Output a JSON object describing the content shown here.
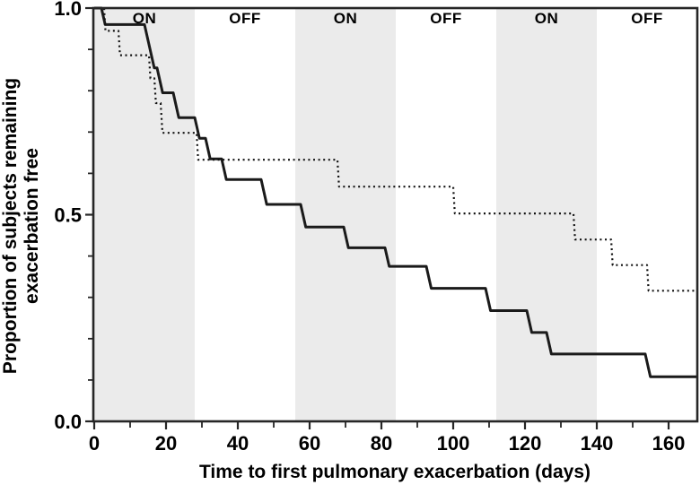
{
  "figure": {
    "background": "#ffffff"
  },
  "chart_data": {
    "type": "line",
    "subtype": "kaplan-meier-step-survival",
    "title": "",
    "xlabel": "Time to first pulmonary exacerbation (days)",
    "ylabel_line1": "Proportion of subjects remaining",
    "ylabel_line2": "exacerbation free",
    "xlim": [
      0,
      168
    ],
    "ylim": [
      0.0,
      1.0
    ],
    "x_major_ticks": [
      0,
      20,
      40,
      60,
      80,
      100,
      120,
      140,
      160
    ],
    "x_minor_ticks": [
      10,
      30,
      50,
      70,
      90,
      110,
      130,
      150
    ],
    "y_major_ticks": [
      0.0,
      0.5,
      1.0
    ],
    "y_major_tick_labels": [
      "0.0",
      "0.5",
      "1.0"
    ],
    "y_minor_ticks": [
      0.1,
      0.2,
      0.3,
      0.4,
      0.6,
      0.7,
      0.8,
      0.9
    ],
    "grid": false,
    "legend": "none",
    "treatment_periods": [
      {
        "label": "ON",
        "start": 0,
        "end": 28,
        "shaded": true
      },
      {
        "label": "OFF",
        "start": 28,
        "end": 56,
        "shaded": false
      },
      {
        "label": "ON",
        "start": 56,
        "end": 84,
        "shaded": true
      },
      {
        "label": "OFF",
        "start": 84,
        "end": 112,
        "shaded": false
      },
      {
        "label": "ON",
        "start": 112,
        "end": 140,
        "shaded": true
      },
      {
        "label": "OFF",
        "start": 140,
        "end": 168,
        "shaded": false
      }
    ],
    "series": [
      {
        "name": "solid curve",
        "line_style": "solid",
        "color": "#1a1a1a",
        "steps": [
          [
            0,
            1.0
          ],
          [
            2,
            0.96
          ],
          [
            14,
            0.855
          ],
          [
            17.5,
            0.795
          ],
          [
            22,
            0.735
          ],
          [
            28,
            0.685
          ],
          [
            31,
            0.635
          ],
          [
            35.5,
            0.585
          ],
          [
            46.5,
            0.525
          ],
          [
            57.5,
            0.47
          ],
          [
            69.5,
            0.42
          ],
          [
            81,
            0.375
          ],
          [
            92.5,
            0.322
          ],
          [
            109,
            0.268
          ],
          [
            120.5,
            0.215
          ],
          [
            126,
            0.163
          ],
          [
            153.5,
            0.108
          ]
        ],
        "end_x": 168
      },
      {
        "name": "dotted curve",
        "line_style": "dotted",
        "color": "#111111",
        "steps": [
          [
            0,
            1.0
          ],
          [
            2.75,
            0.945
          ],
          [
            6.75,
            0.886
          ],
          [
            15.25,
            0.83
          ],
          [
            16.75,
            0.77
          ],
          [
            18.5,
            0.698
          ],
          [
            28.5,
            0.633
          ],
          [
            67.75,
            0.568
          ],
          [
            100,
            0.503
          ],
          [
            133.5,
            0.44
          ],
          [
            144,
            0.378
          ],
          [
            154,
            0.316
          ]
        ],
        "end_x": 168
      }
    ],
    "colors": {
      "band_shaded": "#ebebeb",
      "band_unshaded": "#ffffff",
      "axis": "#262626",
      "text": "#000000"
    }
  }
}
